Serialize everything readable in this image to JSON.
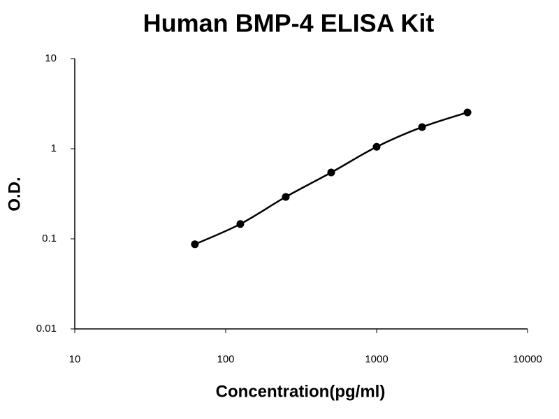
{
  "chart_data": {
    "type": "line",
    "title": "Human BMP-4 ELISA Kit",
    "x_label": "Concentration(pg/ml)",
    "y_label": "O.D.",
    "x": [
      62.5,
      125,
      250,
      500,
      1000,
      2000,
      4000
    ],
    "series": [
      {
        "color": "#000000",
        "values": [
          0.087,
          0.146,
          0.292,
          0.545,
          1.05,
          1.74,
          2.53
        ]
      }
    ],
    "xlim": [
      10,
      10000
    ],
    "xticks": [
      10,
      100,
      1000,
      10000
    ],
    "ylim": [
      0.01,
      10
    ],
    "yticks": [
      0.01,
      0.1,
      1,
      10
    ],
    "xscale": "log",
    "yscale": "log",
    "grid": false,
    "markers": true,
    "smooth": true
  }
}
